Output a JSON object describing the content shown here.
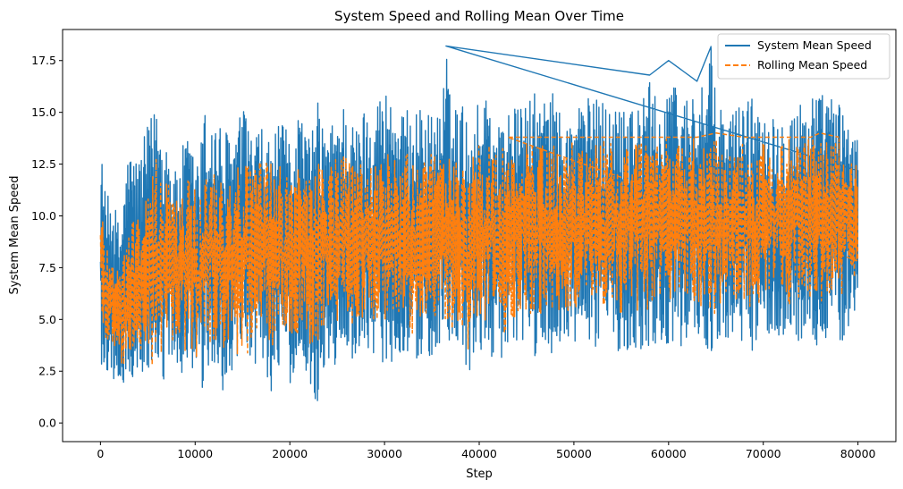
{
  "chart_data": {
    "type": "line",
    "title": "System Speed and Rolling Mean Over Time",
    "xlabel": "Step",
    "ylabel": "System Mean Speed",
    "xlim": [
      -4000,
      84000
    ],
    "ylim": [
      -0.9,
      19.0
    ],
    "xticks": [
      0,
      10000,
      20000,
      30000,
      40000,
      50000,
      60000,
      70000,
      80000
    ],
    "xtick_labels": [
      "0",
      "10000",
      "20000",
      "30000",
      "40000",
      "50000",
      "60000",
      "70000",
      "80000"
    ],
    "yticks": [
      0.0,
      2.5,
      5.0,
      7.5,
      10.0,
      12.5,
      15.0,
      17.5
    ],
    "ytick_labels": [
      "0.0",
      "2.5",
      "5.0",
      "7.5",
      "10.0",
      "12.5",
      "15.0",
      "17.5"
    ],
    "grid": false,
    "legend_position": "top-right",
    "colors": {
      "system": "#1f77b4",
      "rolling": "#ff7f0e"
    },
    "series": [
      {
        "name": "System Mean Speed",
        "style": "solid",
        "color": "#1f77b4",
        "x": [
          0,
          200,
          600,
          1200,
          2000,
          3000,
          4000,
          5000,
          6000,
          7000,
          8000,
          9000,
          10000,
          10500,
          11000,
          12000,
          13000,
          14000,
          15000,
          16000,
          17000,
          18000,
          19000,
          20000,
          21000,
          22000,
          23000,
          24000,
          25000,
          26000,
          27000,
          28000,
          29000,
          30000,
          31000,
          32000,
          33000,
          34000,
          35000,
          36000,
          36500,
          37000,
          38000,
          39000,
          40000,
          41000,
          42000,
          43000,
          44000,
          45000,
          46000,
          47000,
          48000,
          49000,
          50000,
          51000,
          52000,
          53000,
          54000,
          55000,
          56000,
          57000,
          58000,
          59000,
          60000,
          61000,
          62000,
          63000,
          64000,
          64500,
          65000,
          66000,
          67000,
          68000,
          69000,
          70000,
          71000,
          72000,
          73000,
          74000,
          75000,
          76000,
          77000,
          78000,
          79000,
          80000
        ],
        "min": [
          0.0,
          2.0,
          2.5,
          2.2,
          1.5,
          2.0,
          1.8,
          2.5,
          1.2,
          2.0,
          2.8,
          2.0,
          1.5,
          0.6,
          1.8,
          2.5,
          1.5,
          2.0,
          2.8,
          2.5,
          3.0,
          1.5,
          2.0,
          1.8,
          3.0,
          1.8,
          0.8,
          3.0,
          2.5,
          3.5,
          2.8,
          3.8,
          3.2,
          2.8,
          3.0,
          3.5,
          2.5,
          3.0,
          3.2,
          3.8,
          3.0,
          3.2,
          3.2,
          2.0,
          3.5,
          3.0,
          3.5,
          2.5,
          3.2,
          4.0,
          3.0,
          3.2,
          3.5,
          3.8,
          3.5,
          4.0,
          3.5,
          3.8,
          4.5,
          3.0,
          3.8,
          3.2,
          3.5,
          4.0,
          3.8,
          3.5,
          4.2,
          3.8,
          3.5,
          3.3,
          4.0,
          3.8,
          4.2,
          3.2,
          3.5,
          4.0,
          4.5,
          3.8,
          3.5,
          4.0,
          3.5,
          3.8,
          4.0,
          3.5,
          4.5,
          5.0
        ],
        "max": [
          14.6,
          12.4,
          10.8,
          11.3,
          9.5,
          13.4,
          12.8,
          14.4,
          15.5,
          14.0,
          12.0,
          14.0,
          13.0,
          13.2,
          15.2,
          14.8,
          14.3,
          14.0,
          15.3,
          14.0,
          14.2,
          13.7,
          14.5,
          14.0,
          15.3,
          13.8,
          15.6,
          13.8,
          15.4,
          15.6,
          14.2,
          15.5,
          15.5,
          16.4,
          15.8,
          14.8,
          15.7,
          15.0,
          15.0,
          15.2,
          18.2,
          15.2,
          15.8,
          14.3,
          15.7,
          16.3,
          14.4,
          15.4,
          15.2,
          15.5,
          16.0,
          15.7,
          16.0,
          14.3,
          15.2,
          16.0,
          15.5,
          16.0,
          15.0,
          16.2,
          16.0,
          15.2,
          16.8,
          15.0,
          17.5,
          15.8,
          16.0,
          16.5,
          16.0,
          18.2,
          16.2,
          14.7,
          15.2,
          16.0,
          15.7,
          15.6,
          15.0,
          15.0,
          15.4,
          15.6,
          16.2,
          16.0,
          15.8,
          15.6,
          14.7,
          14.4
        ]
      },
      {
        "name": "Rolling Mean Speed",
        "style": "dashed",
        "color": "#ff7f0e",
        "x": [
          0,
          200,
          600,
          1200,
          2000,
          3000,
          4000,
          5000,
          6000,
          7000,
          8000,
          9000,
          10000,
          10500,
          11000,
          12000,
          13000,
          14000,
          15000,
          16000,
          17000,
          18000,
          19000,
          20000,
          21000,
          22000,
          23000,
          24000,
          25000,
          26000,
          27000,
          28000,
          29000,
          30000,
          31000,
          32000,
          33000,
          34000,
          35000,
          36000,
          36500,
          37000,
          38000,
          39000,
          40000,
          41000,
          42000,
          43000,
          44000,
          45000,
          46000,
          47000,
          48000,
          49000,
          50000,
          51000,
          52000,
          53000,
          54000,
          55000,
          56000,
          57000,
          58000,
          59000,
          60000,
          61000,
          62000,
          63000,
          64000,
          64500,
          65000,
          66000,
          67000,
          68000,
          69000,
          70000,
          71000,
          72000,
          73000,
          74000,
          75000,
          76000,
          77000,
          78000,
          79000,
          80000
        ],
        "min": [
          7.0,
          4.5,
          3.5,
          4.0,
          2.5,
          3.0,
          3.5,
          3.0,
          2.5,
          3.5,
          4.0,
          3.2,
          2.5,
          1.5,
          3.5,
          4.0,
          3.5,
          3.5,
          3.0,
          3.5,
          4.5,
          3.5,
          4.0,
          3.5,
          4.5,
          3.8,
          3.8,
          4.5,
          4.5,
          5.0,
          4.5,
          5.0,
          5.0,
          4.5,
          5.0,
          5.0,
          4.0,
          5.0,
          5.0,
          4.8,
          5.0,
          4.5,
          4.8,
          3.2,
          5.0,
          4.8,
          5.2,
          3.8,
          5.0,
          5.5,
          5.0,
          5.2,
          5.5,
          5.0,
          5.5,
          5.8,
          5.5,
          5.2,
          6.0,
          5.0,
          5.8,
          5.2,
          5.5,
          6.0,
          5.8,
          5.5,
          6.0,
          5.8,
          5.0,
          4.3,
          5.5,
          5.8,
          6.0,
          5.2,
          5.5,
          6.0,
          6.3,
          6.0,
          5.5,
          6.0,
          6.0,
          5.8,
          6.2,
          6.0,
          6.5,
          7.0
        ],
        "max": [
          9.5,
          10.3,
          9.0,
          8.5,
          7.5,
          9.5,
          10.5,
          11.0,
          13.0,
          12.0,
          11.0,
          12.0,
          11.5,
          11.0,
          12.5,
          12.5,
          12.0,
          12.5,
          12.8,
          12.5,
          13.0,
          12.5,
          12.5,
          12.0,
          13.0,
          12.5,
          12.8,
          12.5,
          13.0,
          12.8,
          12.5,
          13.0,
          12.8,
          13.2,
          13.0,
          12.8,
          13.3,
          12.8,
          13.0,
          13.0,
          13.0,
          13.0,
          13.2,
          12.5,
          13.5,
          13.5,
          12.8,
          13.8,
          13.0,
          13.5,
          13.5,
          13.5,
          13.5,
          13.0,
          13.8,
          13.5,
          13.5,
          13.8,
          13.5,
          13.8,
          13.5,
          13.5,
          13.8,
          13.5,
          13.8,
          13.5,
          13.8,
          13.8,
          13.5,
          13.5,
          14.0,
          13.0,
          13.5,
          13.8,
          13.5,
          13.8,
          13.5,
          13.5,
          13.8,
          13.8,
          13.8,
          14.0,
          13.5,
          13.8,
          13.2,
          12.5
        ]
      }
    ]
  }
}
